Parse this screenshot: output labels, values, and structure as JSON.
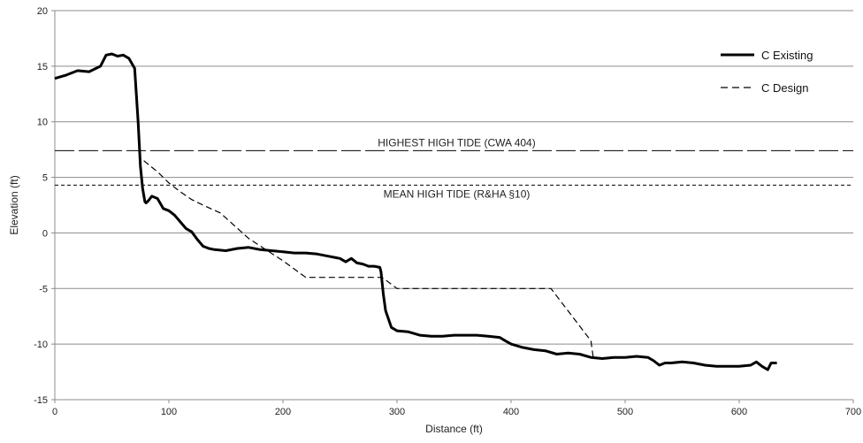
{
  "chart_data": {
    "type": "line",
    "xlabel": "Distance (ft)",
    "ylabel": "Elevation (ft)",
    "xlim": [
      0,
      700
    ],
    "ylim": [
      -15,
      20
    ],
    "x_ticks": [
      0,
      100,
      200,
      300,
      400,
      500,
      600,
      700
    ],
    "y_ticks": [
      -15,
      -10,
      -5,
      0,
      5,
      10,
      15,
      20
    ],
    "grid": "horizontal",
    "legend_position": "top-right",
    "series": [
      {
        "name": "C Existing",
        "style": "solid-thick",
        "color": "#000000",
        "x": [
          0,
          10,
          20,
          30,
          40,
          45,
          50,
          55,
          60,
          65,
          70,
          73,
          75,
          77,
          79,
          80,
          82,
          85,
          90,
          95,
          100,
          105,
          110,
          115,
          120,
          125,
          130,
          135,
          140,
          150,
          160,
          170,
          180,
          190,
          200,
          210,
          220,
          230,
          240,
          250,
          255,
          260,
          265,
          270,
          275,
          280,
          285,
          286,
          288,
          290,
          295,
          300,
          310,
          320,
          330,
          340,
          350,
          360,
          370,
          380,
          390,
          395,
          400,
          410,
          420,
          430,
          440,
          450,
          460,
          470,
          480,
          490,
          500,
          510,
          520,
          525,
          530,
          535,
          540,
          550,
          560,
          570,
          580,
          590,
          600,
          610,
          615,
          620,
          625,
          628,
          633
        ],
        "y": [
          13.9,
          14.2,
          14.6,
          14.5,
          15.0,
          16.0,
          16.1,
          15.9,
          16.0,
          15.7,
          14.8,
          10.0,
          6.0,
          4.0,
          2.8,
          2.7,
          2.9,
          3.3,
          3.1,
          2.2,
          2.0,
          1.6,
          1.0,
          0.4,
          0.1,
          -0.6,
          -1.2,
          -1.4,
          -1.5,
          -1.6,
          -1.4,
          -1.3,
          -1.5,
          -1.6,
          -1.7,
          -1.8,
          -1.8,
          -1.9,
          -2.1,
          -2.3,
          -2.6,
          -2.3,
          -2.7,
          -2.8,
          -3.0,
          -3.0,
          -3.1,
          -3.5,
          -5.5,
          -7.0,
          -8.5,
          -8.8,
          -8.9,
          -9.2,
          -9.3,
          -9.3,
          -9.2,
          -9.2,
          -9.2,
          -9.3,
          -9.4,
          -9.7,
          -10.0,
          -10.3,
          -10.5,
          -10.6,
          -10.9,
          -10.8,
          -10.9,
          -11.2,
          -11.3,
          -11.2,
          -11.2,
          -11.1,
          -11.2,
          -11.5,
          -11.9,
          -11.7,
          -11.7,
          -11.6,
          -11.7,
          -11.9,
          -12.0,
          -12.0,
          -12.0,
          -11.9,
          -11.6,
          -12.0,
          -12.3,
          -11.7,
          -11.7
        ]
      },
      {
        "name": "C Design",
        "style": "dashed",
        "color": "#000000",
        "x": [
          78,
          90,
          100,
          110,
          120,
          130,
          145,
          170,
          200,
          220,
          287,
          300,
          380,
          435,
          470,
          472
        ],
        "y": [
          6.5,
          5.5,
          4.5,
          3.7,
          3.0,
          2.5,
          1.8,
          -0.5,
          -2.5,
          -4.0,
          -4.0,
          -5.0,
          -5.0,
          -5.0,
          -9.7,
          -11.2
        ]
      }
    ],
    "reference_lines": [
      {
        "label": "HIGHEST HIGH TIDE (CWA 404)",
        "y": 7.4,
        "style": "long-dash",
        "label_position": "above"
      },
      {
        "label": "MEAN HIGH TIDE (R&HA §10)",
        "y": 4.3,
        "style": "short-dash",
        "label_position": "below"
      }
    ]
  }
}
